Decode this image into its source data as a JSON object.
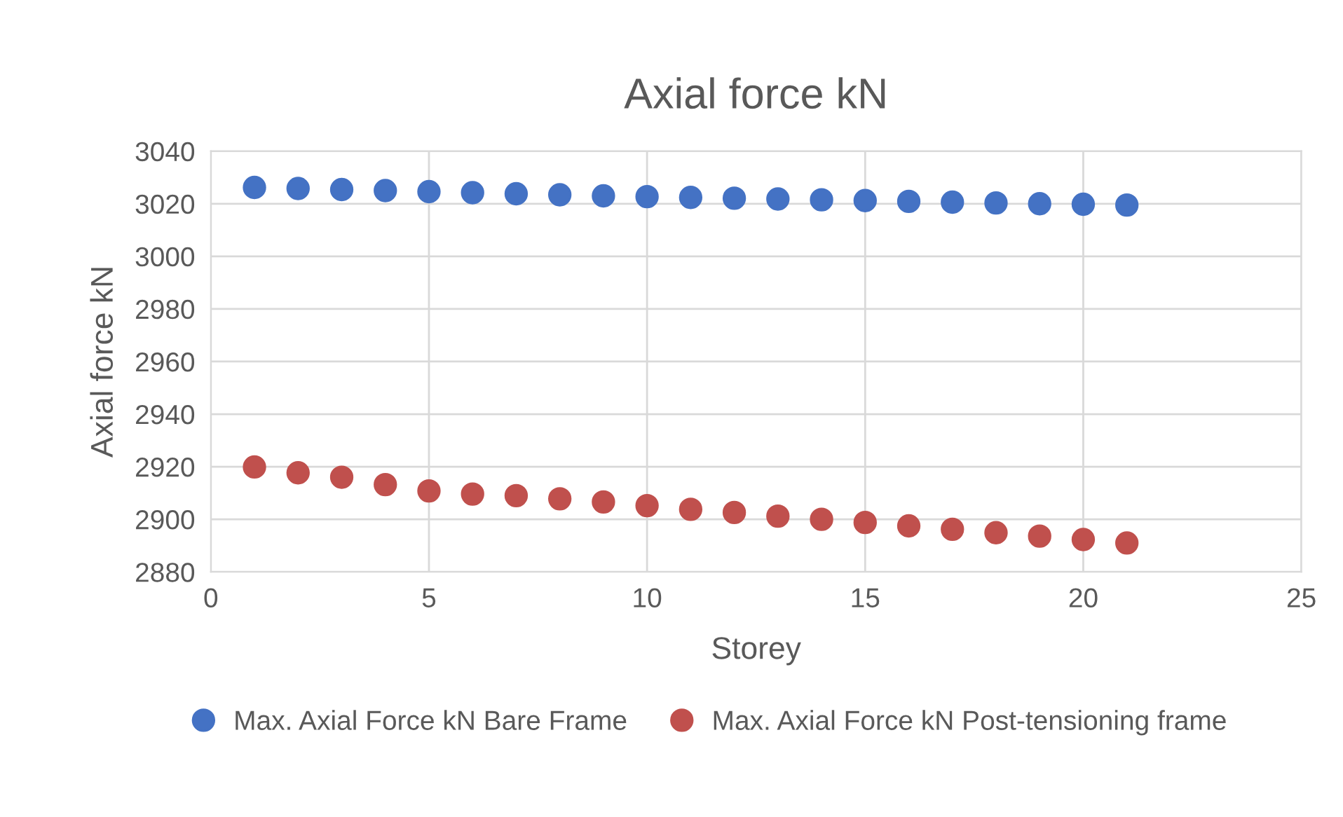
{
  "chart_data": {
    "type": "scatter",
    "title": "Axial force kN",
    "xlabel": "Storey",
    "ylabel": "Axial force kN",
    "x": [
      1,
      2,
      3,
      4,
      5,
      6,
      7,
      8,
      9,
      10,
      11,
      12,
      13,
      14,
      15,
      16,
      17,
      18,
      19,
      20,
      21
    ],
    "series": [
      {
        "name": "Max. Axial Force kN Bare Frame",
        "color": "#4472c4",
        "values": [
          3026.2,
          3025.8,
          3025.4,
          3025.0,
          3024.6,
          3024.2,
          3023.8,
          3023.4,
          3023.0,
          3022.7,
          3022.4,
          3022.1,
          3021.8,
          3021.5,
          3021.2,
          3020.9,
          3020.6,
          3020.3,
          3020.0,
          3019.8,
          3019.5
        ]
      },
      {
        "name": "Max. Axial Force kN Post-tensioning frame",
        "color": "#c0504d",
        "values": [
          2919.9,
          2917.7,
          2916.0,
          2913.2,
          2910.8,
          2909.6,
          2909.0,
          2907.8,
          2906.6,
          2905.2,
          2903.8,
          2902.6,
          2901.2,
          2900.0,
          2898.8,
          2897.5,
          2896.2,
          2894.9,
          2893.6,
          2892.3,
          2891.0
        ]
      }
    ],
    "xlim": [
      0,
      25
    ],
    "xticks": [
      0,
      5,
      10,
      15,
      20,
      25
    ],
    "ylim": [
      2880,
      3040
    ],
    "yticks": [
      2880,
      2900,
      2920,
      2940,
      2960,
      2980,
      3000,
      3020,
      3040
    ],
    "grid": true,
    "legend": "bottom",
    "marker": "circle"
  }
}
